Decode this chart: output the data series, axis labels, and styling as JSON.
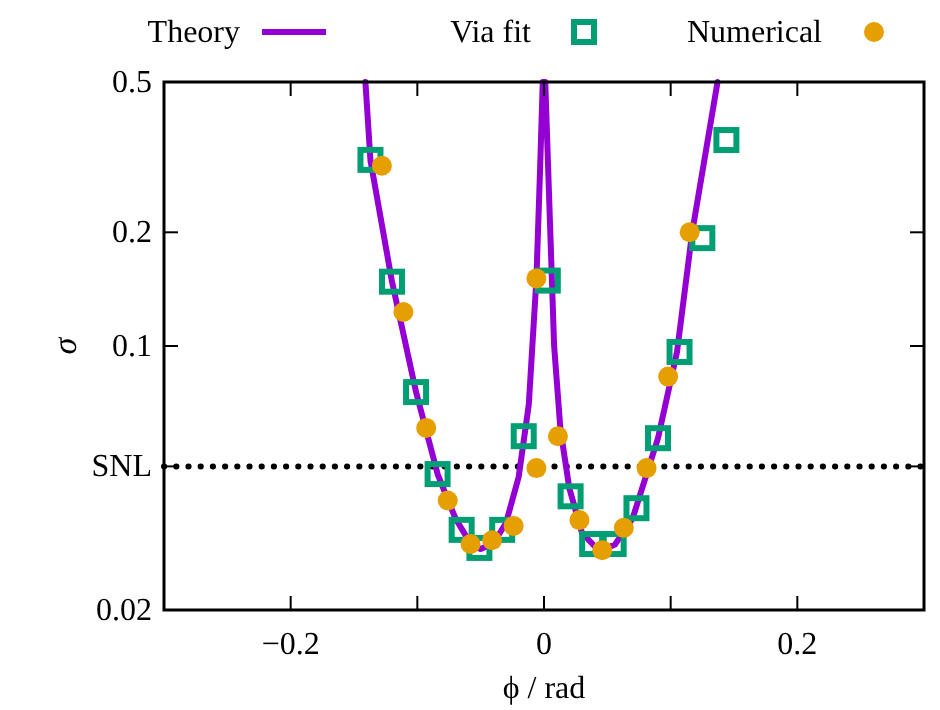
{
  "chart_data": {
    "type": "line",
    "xlabel": "ϕ / rad",
    "ylabel": "σ",
    "log": "y",
    "grid": false,
    "legend": "top",
    "xlim": [
      -0.3,
      0.3
    ],
    "xticks": [
      {
        "value": -0.3,
        "label": null
      },
      -0.2,
      {
        "value": -0.1,
        "label": null
      },
      0,
      {
        "value": 0.1,
        "label": null
      },
      0.2,
      {
        "value": 0.3,
        "label": null
      }
    ],
    "ylim": [
      0.02,
      0.5
    ],
    "yticks": [
      0.02,
      {
        "value": 0.048,
        "label": "SNL"
      },
      0.1,
      0.2,
      0.5
    ],
    "ref_lines": [
      {
        "axis": "y",
        "value": 0.048,
        "color": "#000000",
        "line_style": "dotted"
      }
    ],
    "series": [
      {
        "name": "Theory",
        "color": "#9400d3",
        "marker": "none",
        "line_style": "solid",
        "x": [
          -0.141,
          -0.137,
          -0.12,
          -0.101,
          -0.084,
          -0.07,
          -0.058,
          -0.05,
          -0.04,
          -0.03,
          -0.02,
          -0.012,
          -0.006,
          -0.003,
          -0.001,
          0.001,
          0.004,
          0.008,
          0.013,
          0.02,
          0.03,
          0.04,
          0.048,
          0.056,
          0.07,
          0.09,
          0.105,
          0.117,
          0.137
        ],
        "values": [
          0.5,
          0.31,
          0.148,
          0.0755,
          0.0458,
          0.035,
          0.03,
          0.029,
          0.03,
          0.034,
          0.045,
          0.07,
          0.15,
          0.3,
          0.5,
          0.5,
          0.25,
          0.1,
          0.06,
          0.042,
          0.032,
          0.0295,
          0.029,
          0.0298,
          0.035,
          0.057,
          0.0964,
          0.2,
          0.5
        ]
      },
      {
        "name": "Via fit",
        "type": "scatter",
        "color": "#009e73",
        "marker": "square",
        "x": [
          -0.137,
          -0.12,
          -0.101,
          -0.084,
          -0.065,
          -0.051,
          -0.033,
          -0.016,
          0.003,
          0.021,
          0.038,
          0.055,
          0.073,
          0.09,
          0.107,
          0.125,
          0.144
        ],
        "values": [
          0.311,
          0.148,
          0.0755,
          0.0458,
          0.0326,
          0.0292,
          0.0326,
          0.0577,
          0.149,
          0.04,
          0.0299,
          0.0299,
          0.0372,
          0.057,
          0.0964,
          0.193,
          0.351
        ]
      },
      {
        "name": "Numerical",
        "type": "scatter",
        "color": "#e69f00",
        "marker": "circle",
        "x": [
          -0.128,
          -0.111,
          -0.093,
          -0.076,
          -0.058,
          -0.041,
          -0.024,
          -0.006,
          -0.006,
          0.011,
          0.028,
          0.046,
          0.063,
          0.081,
          0.098,
          0.115
        ],
        "values": [
          0.3,
          0.123,
          0.0607,
          0.039,
          0.0299,
          0.0306,
          0.0334,
          0.0475,
          0.151,
          0.0577,
          0.0346,
          0.0288,
          0.033,
          0.0475,
          0.083,
          0.2
        ]
      }
    ]
  }
}
